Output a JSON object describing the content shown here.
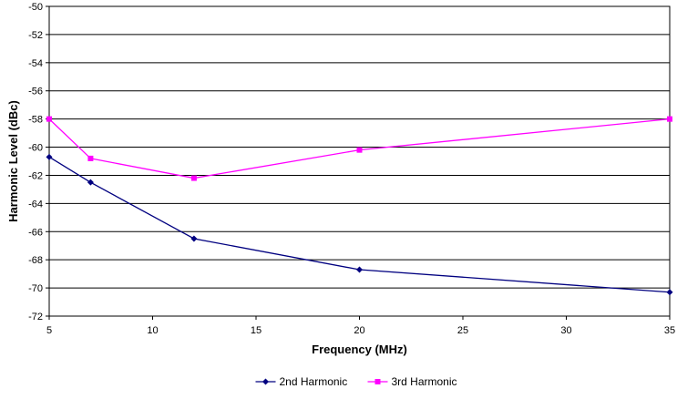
{
  "chart_data": {
    "type": "line",
    "title": "",
    "xlabel": "Frequency (MHz)",
    "ylabel": "Harmonic Level (dBc)",
    "xlim": [
      5,
      35
    ],
    "ylim": [
      -72,
      -50
    ],
    "x_ticks": [
      5,
      10,
      15,
      20,
      25,
      30,
      35
    ],
    "y_ticks": [
      -50,
      -52,
      -54,
      -56,
      -58,
      -60,
      -62,
      -64,
      -66,
      -68,
      -70,
      -72
    ],
    "grid": {
      "horizontal": true,
      "vertical": false
    },
    "legend_position": "bottom",
    "series": [
      {
        "name": "2nd Harmonic",
        "color": "#000080",
        "marker": "diamond",
        "x": [
          5,
          7,
          12,
          20,
          35
        ],
        "y": [
          -60.7,
          -62.5,
          -66.5,
          -68.7,
          -70.3
        ]
      },
      {
        "name": "3rd Harmonic",
        "color": "#ff00ff",
        "marker": "square",
        "x": [
          5,
          7,
          12,
          20,
          35
        ],
        "y": [
          -58.0,
          -60.8,
          -62.2,
          -60.2,
          -58.0
        ]
      }
    ]
  }
}
